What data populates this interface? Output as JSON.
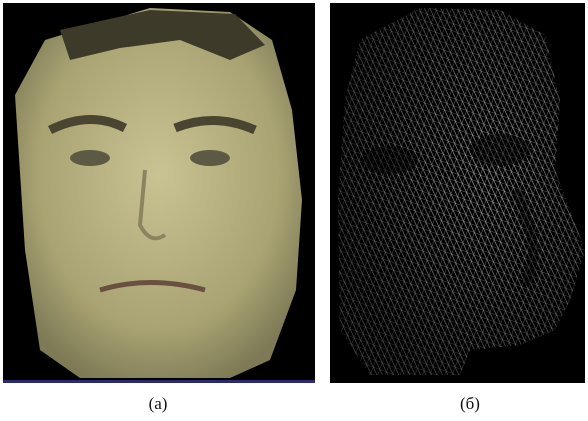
{
  "figure": {
    "panels": [
      {
        "caption": "(а)"
      },
      {
        "caption": "(б)"
      }
    ]
  }
}
